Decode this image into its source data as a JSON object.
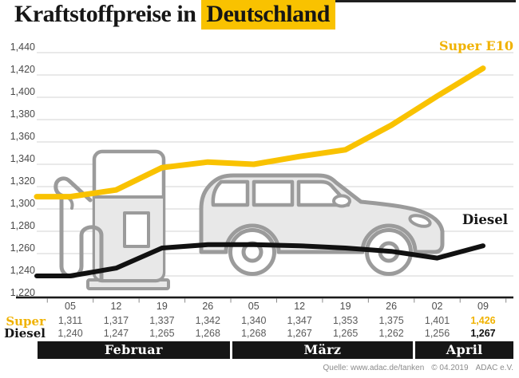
{
  "header": {
    "title_prefix": "Kraftstoffpreise in",
    "title_highlight": "Deutschland",
    "highlight_color": "#F9C200"
  },
  "chart_data": {
    "type": "line",
    "title": "Kraftstoffpreise in Deutschland",
    "categories": [
      "05",
      "12",
      "19",
      "26",
      "05",
      "12",
      "19",
      "26",
      "02",
      "09"
    ],
    "series": [
      {
        "name": "Super E10",
        "color": "#F9C200",
        "values": [
          1.311,
          1.317,
          1.337,
          1.342,
          1.34,
          1.347,
          1.353,
          1.375,
          1.401,
          1.426
        ],
        "labels": [
          "1,311",
          "1,317",
          "1,337",
          "1,342",
          "1,340",
          "1,347",
          "1,353",
          "1,375",
          "1,401",
          "1,426"
        ]
      },
      {
        "name": "Diesel",
        "color": "#111111",
        "values": [
          1.24,
          1.247,
          1.265,
          1.268,
          1.268,
          1.267,
          1.265,
          1.262,
          1.256,
          1.267
        ],
        "labels": [
          "1,240",
          "1,247",
          "1,265",
          "1,268",
          "1,268",
          "1,267",
          "1,265",
          "1,262",
          "1,256",
          "1,267"
        ]
      }
    ],
    "months": [
      {
        "label": "Februar",
        "span": 4
      },
      {
        "label": "März",
        "span": 4
      },
      {
        "label": "April",
        "span": 2
      }
    ],
    "y_axis": {
      "min": 1.22,
      "max": 1.44,
      "step": 0.02,
      "tick_labels": [
        "1,440",
        "1,420",
        "1,400",
        "1,380",
        "1,360",
        "1,340",
        "1,320",
        "1,300",
        "1,280",
        "1,260",
        "1,240",
        "1,220"
      ]
    },
    "ylim": [
      1.22,
      1.44
    ],
    "grid": true,
    "legend_position": "line-end-labels",
    "colors": {
      "gridline": "#dcdcdc",
      "axis": "#1a1a1a",
      "illustration_stroke": "#9B9B9B",
      "illustration_fill": "#E8E8E8",
      "month_band_bg": "#161616",
      "value_text": "#5a5a5a"
    }
  },
  "table": {
    "row_labels": [
      "Super",
      "Diesel"
    ]
  },
  "illustrations": [
    "fuel-pump",
    "minivan"
  ],
  "footer": {
    "source": "Quelle: www.adac.de/tanken",
    "copyright": "© 04.2019",
    "org": "ADAC e.V."
  }
}
